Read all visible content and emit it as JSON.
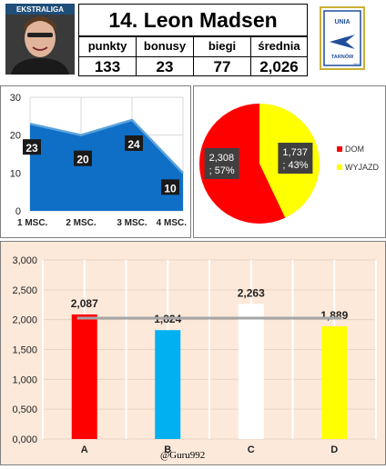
{
  "header": {
    "title": "14. Leon Madsen",
    "stats": [
      {
        "label": "punkty",
        "value": "133"
      },
      {
        "label": "bonusy",
        "value": "23"
      },
      {
        "label": "biegi",
        "value": "77"
      },
      {
        "label": "średnia",
        "value": "2,026"
      }
    ],
    "logo_text": {
      "top": "UNIA",
      "bottom": "TARNÓW",
      "year": "2012"
    },
    "photo_caption": "EKSTRALIGA"
  },
  "chart_data": [
    {
      "type": "area",
      "categories": [
        "1 MSC.",
        "2 MSC.",
        "3 MSC.",
        "4 MSC."
      ],
      "values": [
        23,
        20,
        24,
        10
      ],
      "ylim": [
        0,
        30
      ],
      "yticks": [
        "0",
        "10",
        "20",
        "30"
      ],
      "grid": true,
      "color": "#0f6fc6"
    },
    {
      "type": "pie",
      "labels": [
        "DOM",
        "WYJAZD"
      ],
      "values": [
        2.308,
        1.737
      ],
      "value_labels": [
        "2,308",
        "1,737"
      ],
      "percent_labels": [
        "; 57%",
        "; 43%"
      ],
      "colors": [
        "#ff0000",
        "#ffff00"
      ],
      "legend": "right"
    },
    {
      "type": "bar",
      "categories": [
        "A",
        "B",
        "C",
        "D"
      ],
      "values": [
        2.087,
        1.824,
        2.263,
        1.889
      ],
      "value_labels": [
        "2,087",
        "1,824",
        "2,263",
        "1,889"
      ],
      "colors": [
        "#ff0000",
        "#00b0f0",
        "#ffffff",
        "#ffff00"
      ],
      "reference_line": 2.026,
      "ylim": [
        0,
        3
      ],
      "yticks": [
        "0,000",
        "0,500",
        "1,000",
        "1,500",
        "2,000",
        "2,500",
        "3,000"
      ],
      "grid": true
    }
  ],
  "credit": "@Guru992"
}
